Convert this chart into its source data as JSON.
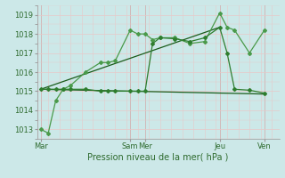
{
  "xlabel": "Pression niveau de la mer( hPa )",
  "ylim": [
    1012.5,
    1019.5
  ],
  "yticks": [
    1013,
    1014,
    1015,
    1016,
    1017,
    1018,
    1019
  ],
  "bg_color": "#cce8e8",
  "grid_color": "#e8c8c8",
  "line_color_dark": "#1a5c1a",
  "line_color_mid": "#2e7d2e",
  "line_color_light": "#4a9a4a",
  "day_labels": [
    "Mar",
    "Sam",
    "Mer",
    "Jeu",
    "Ven"
  ],
  "day_positions": [
    0,
    12,
    14,
    24,
    30
  ],
  "xlim": [
    -0.5,
    32
  ],
  "line1_x": [
    0,
    1,
    2,
    3,
    4,
    6,
    8,
    9,
    10,
    12,
    13,
    14,
    15,
    16,
    18,
    20,
    22,
    24,
    25,
    26,
    28,
    30
  ],
  "line1_y": [
    1013.0,
    1012.8,
    1014.5,
    1015.1,
    1015.3,
    1016.0,
    1016.5,
    1016.5,
    1016.6,
    1018.2,
    1018.0,
    1018.0,
    1017.7,
    1017.8,
    1017.8,
    1017.5,
    1017.6,
    1019.1,
    1018.35,
    1018.2,
    1017.0,
    1018.2
  ],
  "line2_x": [
    0,
    1,
    2,
    3,
    4,
    6,
    8,
    9,
    10,
    12,
    13,
    14,
    15,
    16,
    18,
    20,
    22,
    24,
    25,
    26,
    28,
    30
  ],
  "line2_y": [
    1015.1,
    1015.1,
    1015.1,
    1015.1,
    1015.1,
    1015.1,
    1015.0,
    1015.0,
    1015.0,
    1015.0,
    1015.0,
    1015.0,
    1017.5,
    1017.8,
    1017.75,
    1017.6,
    1017.8,
    1018.35,
    1017.0,
    1015.1,
    1015.05,
    1014.9
  ],
  "line3_x": [
    0,
    30
  ],
  "line3_y": [
    1015.1,
    1014.85
  ],
  "line4_x": [
    0,
    24
  ],
  "line4_y": [
    1015.1,
    1018.35
  ]
}
